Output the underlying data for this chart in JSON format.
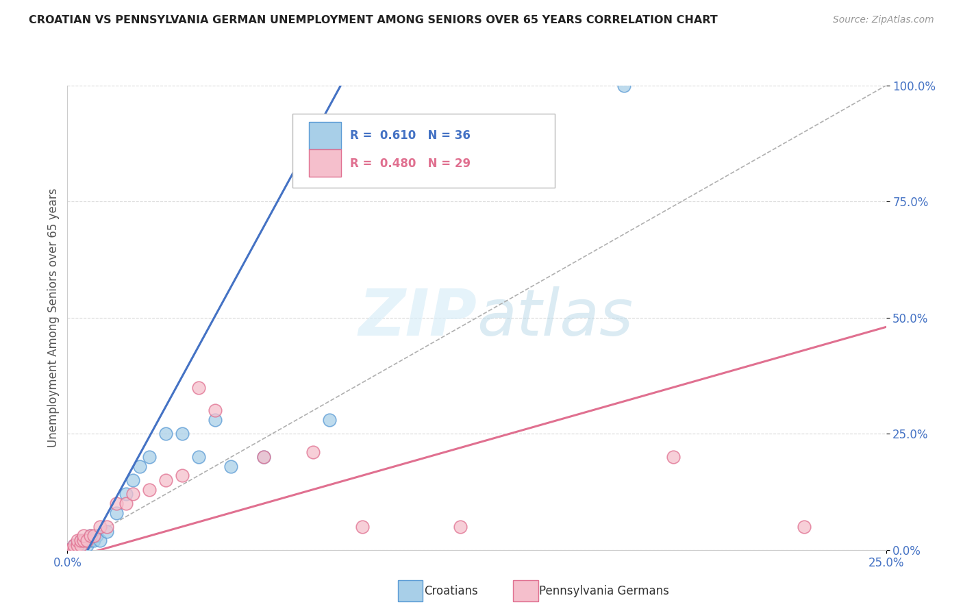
{
  "title": "CROATIAN VS PENNSYLVANIA GERMAN UNEMPLOYMENT AMONG SENIORS OVER 65 YEARS CORRELATION CHART",
  "source": "Source: ZipAtlas.com",
  "ylabel": "Unemployment Among Seniors over 65 years",
  "x_lim": [
    0,
    0.25
  ],
  "y_lim": [
    0,
    1.0
  ],
  "legend_blue_label": "Croatians",
  "legend_pink_label": "Pennsylvania Germans",
  "R_blue": 0.61,
  "N_blue": 36,
  "R_pink": 0.48,
  "N_pink": 29,
  "blue_color": "#a8cfe8",
  "pink_color": "#f5bfcc",
  "blue_edge_color": "#5b9bd5",
  "pink_edge_color": "#e07090",
  "blue_line_color": "#4472c4",
  "pink_line_color": "#e07090",
  "blue_scatter": [
    [
      0.0,
      0.0
    ],
    [
      0.001,
      0.0
    ],
    [
      0.001,
      0.0
    ],
    [
      0.002,
      0.0
    ],
    [
      0.002,
      0.0
    ],
    [
      0.002,
      0.01
    ],
    [
      0.003,
      0.0
    ],
    [
      0.003,
      0.01
    ],
    [
      0.003,
      0.01
    ],
    [
      0.004,
      0.01
    ],
    [
      0.004,
      0.015
    ],
    [
      0.004,
      0.02
    ],
    [
      0.005,
      0.01
    ],
    [
      0.005,
      0.015
    ],
    [
      0.005,
      0.02
    ],
    [
      0.006,
      0.01
    ],
    [
      0.006,
      0.02
    ],
    [
      0.007,
      0.02
    ],
    [
      0.007,
      0.03
    ],
    [
      0.008,
      0.02
    ],
    [
      0.009,
      0.03
    ],
    [
      0.01,
      0.02
    ],
    [
      0.012,
      0.04
    ],
    [
      0.015,
      0.08
    ],
    [
      0.018,
      0.12
    ],
    [
      0.02,
      0.15
    ],
    [
      0.022,
      0.18
    ],
    [
      0.025,
      0.2
    ],
    [
      0.03,
      0.25
    ],
    [
      0.035,
      0.25
    ],
    [
      0.04,
      0.2
    ],
    [
      0.045,
      0.28
    ],
    [
      0.05,
      0.18
    ],
    [
      0.06,
      0.2
    ],
    [
      0.08,
      0.28
    ],
    [
      0.17,
      1.0
    ]
  ],
  "pink_scatter": [
    [
      0.0,
      0.0
    ],
    [
      0.001,
      0.0
    ],
    [
      0.002,
      0.0
    ],
    [
      0.002,
      0.01
    ],
    [
      0.003,
      0.01
    ],
    [
      0.003,
      0.02
    ],
    [
      0.004,
      0.01
    ],
    [
      0.004,
      0.02
    ],
    [
      0.005,
      0.02
    ],
    [
      0.005,
      0.03
    ],
    [
      0.006,
      0.02
    ],
    [
      0.007,
      0.03
    ],
    [
      0.008,
      0.03
    ],
    [
      0.01,
      0.05
    ],
    [
      0.012,
      0.05
    ],
    [
      0.015,
      0.1
    ],
    [
      0.018,
      0.1
    ],
    [
      0.02,
      0.12
    ],
    [
      0.025,
      0.13
    ],
    [
      0.03,
      0.15
    ],
    [
      0.035,
      0.16
    ],
    [
      0.04,
      0.35
    ],
    [
      0.045,
      0.3
    ],
    [
      0.06,
      0.2
    ],
    [
      0.075,
      0.21
    ],
    [
      0.09,
      0.05
    ],
    [
      0.12,
      0.05
    ],
    [
      0.185,
      0.2
    ],
    [
      0.225,
      0.05
    ]
  ],
  "blue_line": [
    [
      0.0,
      -0.08
    ],
    [
      0.085,
      1.02
    ]
  ],
  "pink_line": [
    [
      0.0,
      -0.02
    ],
    [
      0.25,
      0.48
    ]
  ],
  "background_color": "#ffffff",
  "watermark_zip": "ZIP",
  "watermark_atlas": "atlas",
  "grid_color": "#d8d8d8"
}
